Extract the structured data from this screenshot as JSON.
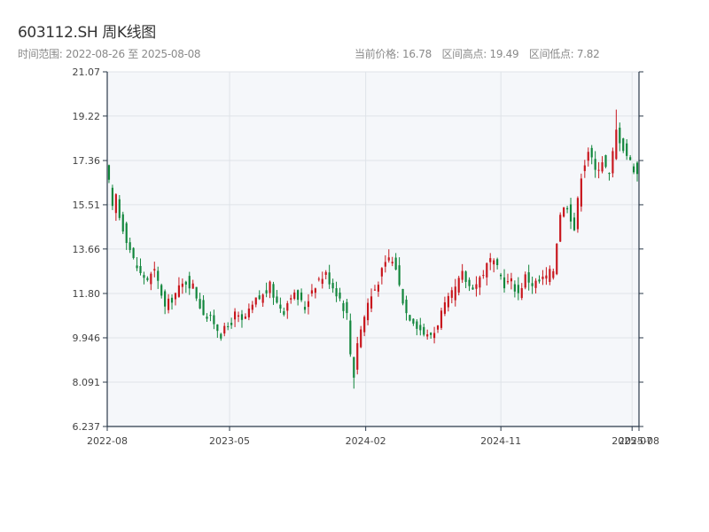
{
  "header": {
    "title": "603112.SH 周K线图",
    "range": "时间范围: 2022-08-26 至 2025-08-08",
    "current_label": "当前价格: 16.78",
    "high_label": "区间高点: 19.49",
    "low_label": "区间低点: 7.82"
  },
  "colors": {
    "up": "#c8161d",
    "down": "#11863b",
    "plot_bg": "#f5f7fa",
    "grid": "#dfe3e8",
    "axis": "#2b3a4a"
  },
  "chart_data": {
    "type": "candlestick",
    "title": "603112.SH 周K线图",
    "ylim": [
      6.237,
      21.07
    ],
    "y_ticks": [
      "6.237",
      "8.091",
      "9.946",
      "11.80",
      "13.66",
      "15.51",
      "17.36",
      "19.22",
      "21.07"
    ],
    "y_tick_values": [
      6.237,
      8.091,
      9.946,
      11.8,
      13.66,
      15.51,
      17.36,
      19.22,
      21.07
    ],
    "xlim": [
      "2022-08-26",
      "2025-08-08"
    ],
    "x_ticks": [
      "2022-08",
      "2023-05",
      "2024-02",
      "2024-11",
      "2025-07",
      "2025-08"
    ],
    "x_tick_dates": [
      "2022-08-26",
      "2023-05-01",
      "2024-02-01",
      "2024-11-01",
      "2025-07-25",
      "2025-08-08"
    ],
    "grid": true,
    "stats": {
      "current": 16.78,
      "high": 19.49,
      "low": 7.82
    },
    "anchor_closes": [
      [
        0,
        16.4
      ],
      [
        1,
        15.3
      ],
      [
        2,
        15.9
      ],
      [
        3,
        15.0
      ],
      [
        5,
        14.1
      ],
      [
        7,
        13.2
      ],
      [
        9,
        12.6
      ],
      [
        11,
        12.4
      ],
      [
        13,
        12.7
      ],
      [
        15,
        11.8
      ],
      [
        16,
        11.2
      ],
      [
        18,
        11.6
      ],
      [
        20,
        12.0
      ],
      [
        22,
        12.3
      ],
      [
        24,
        12.1
      ],
      [
        26,
        11.3
      ],
      [
        28,
        10.8
      ],
      [
        30,
        10.6
      ],
      [
        32,
        10.1
      ],
      [
        34,
        10.4
      ],
      [
        36,
        10.9
      ],
      [
        38,
        10.6
      ],
      [
        40,
        11.0
      ],
      [
        42,
        11.5
      ],
      [
        44,
        11.7
      ],
      [
        46,
        12.1
      ],
      [
        48,
        11.4
      ],
      [
        50,
        11.1
      ],
      [
        52,
        11.8
      ],
      [
        54,
        11.6
      ],
      [
        56,
        11.2
      ],
      [
        58,
        12.0
      ],
      [
        60,
        12.4
      ],
      [
        62,
        12.6
      ],
      [
        64,
        12.1
      ],
      [
        66,
        11.6
      ],
      [
        68,
        10.9
      ],
      [
        69,
        9.3
      ],
      [
        70,
        8.4
      ],
      [
        71,
        9.8
      ],
      [
        72,
        10.3
      ],
      [
        74,
        11.4
      ],
      [
        76,
        12.0
      ],
      [
        78,
        12.7
      ],
      [
        80,
        13.3
      ],
      [
        82,
        12.9
      ],
      [
        83,
        12.1
      ],
      [
        85,
        11.0
      ],
      [
        87,
        10.7
      ],
      [
        89,
        10.3
      ],
      [
        91,
        10.0
      ],
      [
        93,
        10.2
      ],
      [
        95,
        11.0
      ],
      [
        97,
        11.5
      ],
      [
        99,
        12.0
      ],
      [
        101,
        12.6
      ],
      [
        103,
        12.1
      ],
      [
        105,
        12.2
      ],
      [
        107,
        12.7
      ],
      [
        109,
        13.2
      ],
      [
        111,
        12.8
      ],
      [
        113,
        12.2
      ],
      [
        115,
        12.3
      ],
      [
        117,
        11.8
      ],
      [
        119,
        12.5
      ],
      [
        121,
        12.2
      ],
      [
        123,
        12.3
      ],
      [
        125,
        12.5
      ],
      [
        127,
        12.8
      ],
      [
        129,
        15.2
      ],
      [
        131,
        15.5
      ],
      [
        133,
        14.5
      ],
      [
        135,
        16.8
      ],
      [
        137,
        17.8
      ],
      [
        139,
        16.9
      ],
      [
        141,
        17.4
      ],
      [
        143,
        16.7
      ],
      [
        145,
        18.6
      ],
      [
        147,
        17.9
      ],
      [
        149,
        17.3
      ],
      [
        151,
        16.78
      ]
    ],
    "candle_count": 152
  }
}
